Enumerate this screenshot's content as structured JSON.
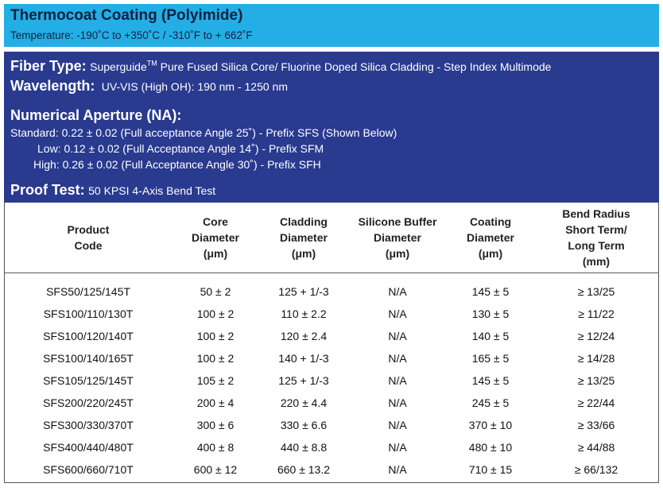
{
  "header": {
    "title": "Thermocoat Coating (Polyimide)",
    "temperature": "Temperature:  -190˚C to +350˚C / -310˚F to + 662˚F"
  },
  "specs": {
    "fiber_type_label": "Fiber Type:",
    "fiber_type_brand": "Superguide",
    "fiber_type_tm": "TM",
    "fiber_type_value": " Pure Fused Silica Core/ Fluorine Doped Silica Cladding - Step Index Multimode",
    "wavelength_label": "Wavelength:",
    "wavelength_value": "UV-VIS (High OH): 190 nm - 1250 nm",
    "na_label": "Numerical Aperture (NA):",
    "na_lines": [
      "Standard: 0.22 ± 0.02 (Full acceptance Angle 25˚) - Prefix SFS (Shown Below)",
      "Low:  0.12 ± 0.02 (Full Acceptance Angle 14˚) - Prefix SFM",
      "High:  0.26 ± 0.02 (Full Acceptance Angle 30˚) - Prefix SFH"
    ],
    "proof_label": "Proof Test:",
    "proof_value": "50 KPSI 4-Axis Bend Test"
  },
  "table": {
    "headers": [
      [
        "Product",
        "Code"
      ],
      [
        "Core",
        "Diameter",
        "(μm)"
      ],
      [
        "Cladding",
        "Diameter",
        "(μm)"
      ],
      [
        "Silicone Buffer",
        "Diameter",
        "(μm)"
      ],
      [
        "Coating",
        "Diameter",
        "(μm)"
      ],
      [
        "Bend Radius",
        "Short Term/",
        "Long Term",
        "(mm)"
      ]
    ],
    "rows": [
      [
        "SFS50/125/145T",
        "50 ± 2",
        "125 + 1/-3",
        "N/A",
        "145 ± 5",
        "≥ 13/25"
      ],
      [
        "SFS100/110/130T",
        "100 ± 2",
        "110 ± 2.2",
        "N/A",
        "130 ± 5",
        "≥ 11/22"
      ],
      [
        "SFS100/120/140T",
        "100 ± 2",
        "120 ± 2.4",
        "N/A",
        "140 ± 5",
        "≥ 12/24"
      ],
      [
        "SFS100/140/165T",
        "100 ± 2",
        "140 + 1/-3",
        "N/A",
        "165 ± 5",
        "≥ 14/28"
      ],
      [
        "SFS105/125/145T",
        "105 ± 2",
        "125 + 1/-3",
        "N/A",
        "145 ± 5",
        "≥ 13/25"
      ],
      [
        "SFS200/220/245T",
        "200 ± 4",
        "220 ± 4.4",
        "N/A",
        "245 ± 5",
        "≥ 22/44"
      ],
      [
        "SFS300/330/370T",
        "300 ± 6",
        "330 ± 6.6",
        "N/A",
        "370 ± 10",
        "≥ 33/66"
      ],
      [
        "SFS400/440/480T",
        "400 ± 8",
        "440 ± 8.8",
        "N/A",
        "480 ± 10",
        "≥ 44/88"
      ],
      [
        "SFS600/660/710T",
        "600 ± 12",
        "660 ± 13.2",
        "N/A",
        "710 ± 15",
        "≥ 66/132"
      ]
    ]
  },
  "colors": {
    "title_bg": "#23aee6",
    "info_bg": "#293a8f"
  }
}
